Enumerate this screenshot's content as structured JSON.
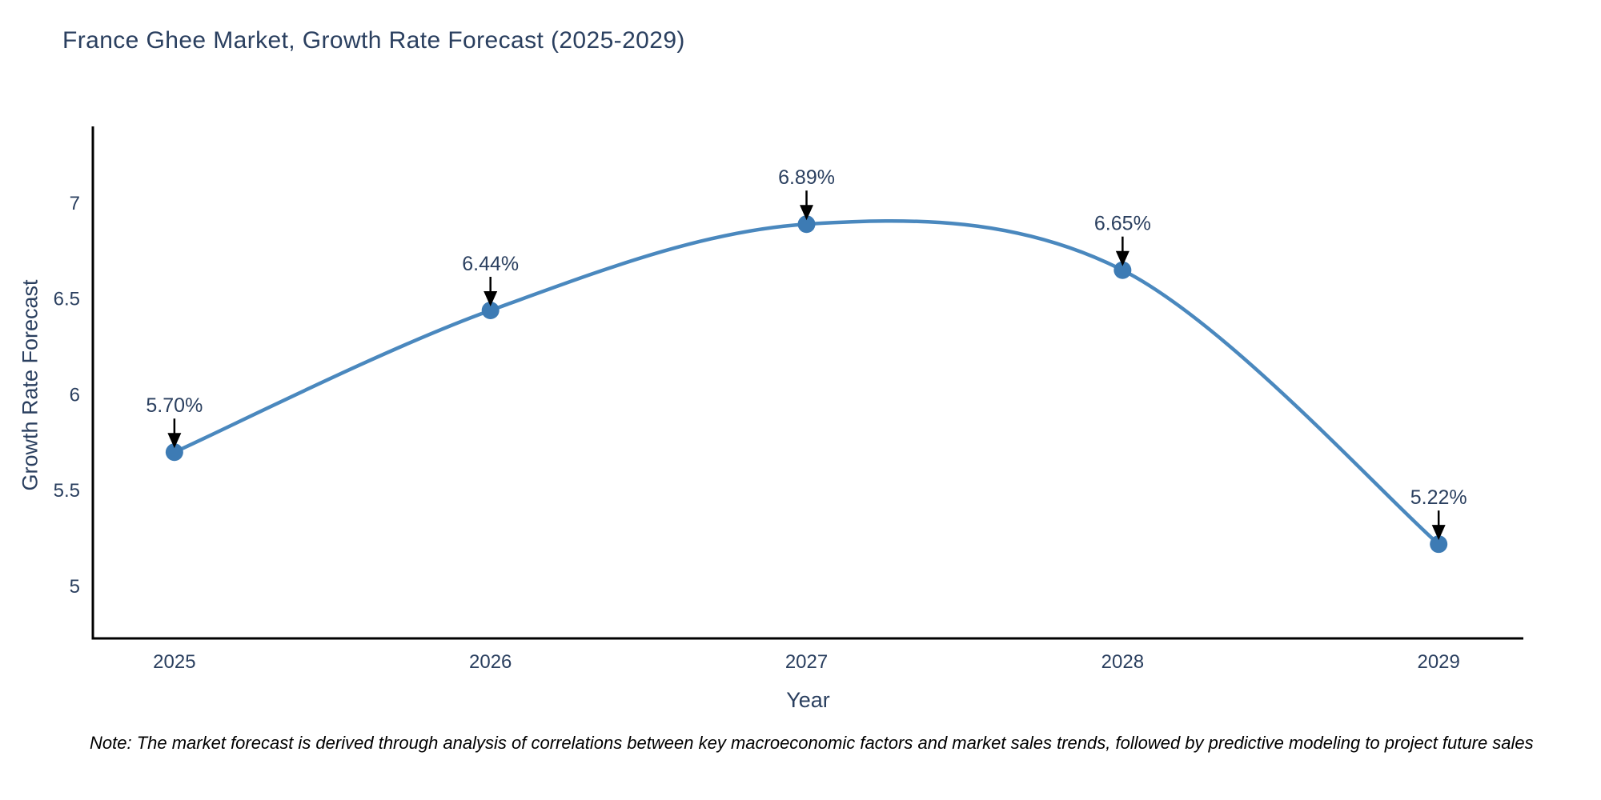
{
  "chart_data": {
    "type": "line",
    "title": "France Ghee Market, Growth Rate Forecast (2025-2029)",
    "xlabel": "Year",
    "ylabel": "Growth Rate Forecast",
    "x": [
      2025,
      2026,
      2027,
      2028,
      2029
    ],
    "values": [
      5.7,
      6.44,
      6.89,
      6.65,
      5.22
    ],
    "point_labels": [
      "5.70%",
      "6.44%",
      "6.89%",
      "6.65%",
      "5.22%"
    ],
    "xticks": [
      2025,
      2026,
      2027,
      2028,
      2029
    ],
    "xtick_labels": [
      "2025",
      "2026",
      "2027",
      "2028",
      "2029"
    ],
    "yticks": [
      5,
      5.5,
      6,
      6.5,
      7
    ],
    "ytick_labels": [
      "5",
      "5.5",
      "6",
      "6.5",
      "7"
    ],
    "xlim": [
      2024.742,
      2029.268
    ],
    "ylim": [
      4.728,
      7.392
    ],
    "grid": false,
    "legend": "none",
    "line_shape": "spline",
    "note": "Note: The market forecast is derived through analysis of correlations between key macroeconomic factors and market sales trends, followed by predictive modeling to project future sales",
    "colors": {
      "line": "#4a88be",
      "marker": "#3d7bb4",
      "arrow": "#000000",
      "text": "#2a3f5f",
      "axis": "#000000",
      "background": "#ffffff"
    }
  }
}
